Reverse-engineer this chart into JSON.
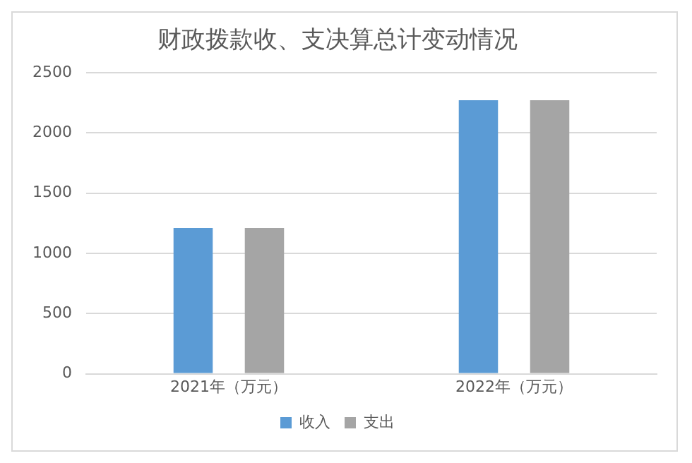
{
  "chart_data": {
    "type": "bar",
    "title": "财政拨款收、支决算总计变动情况",
    "categories": [
      "2021年（万元）",
      "2022年（万元）"
    ],
    "series": [
      {
        "name": "收入",
        "color": "#5b9bd5",
        "values": [
          1210,
          2270
        ]
      },
      {
        "name": "支出",
        "color": "#a5a5a5",
        "values": [
          1210,
          2270
        ]
      }
    ],
    "ylim": [
      0,
      2500
    ],
    "yticks": [
      0,
      500,
      1000,
      1500,
      2000,
      2500
    ],
    "grid": "y",
    "legend": "bottom"
  }
}
